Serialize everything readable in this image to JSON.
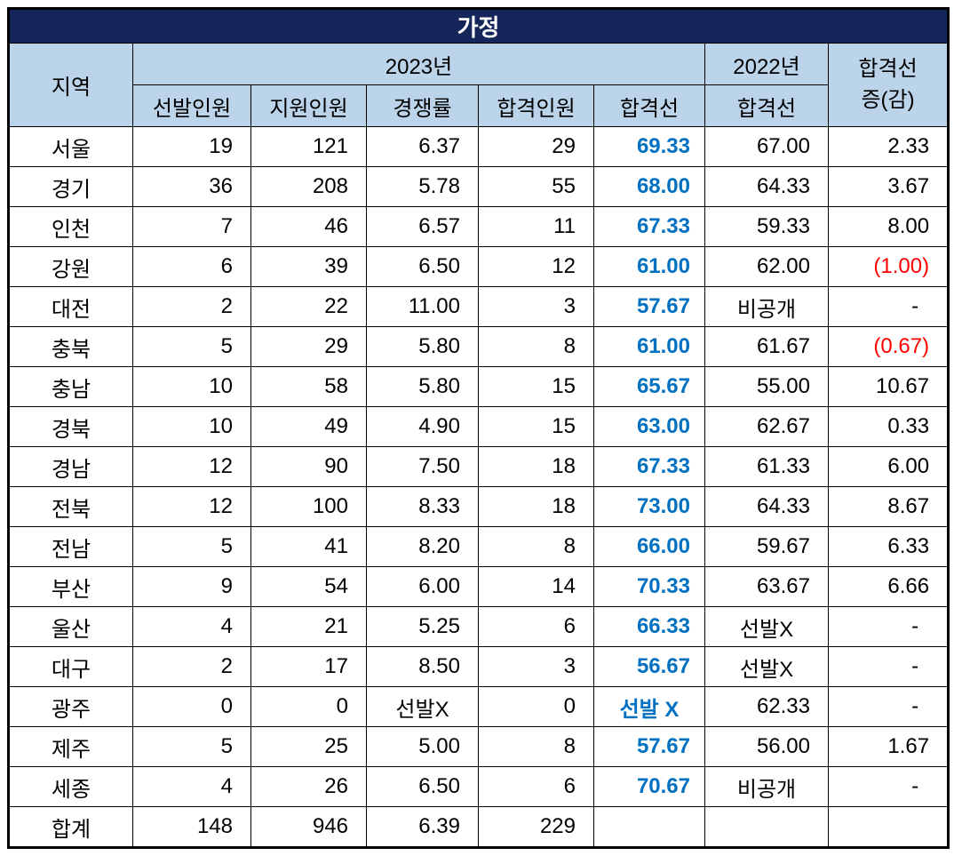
{
  "title": "가정",
  "header": {
    "region": "지역",
    "year2023": "2023년",
    "year2022": "2022년",
    "sub2023": [
      "선발인원",
      "지원인원",
      "경쟁률",
      "합격인원",
      "합격선"
    ],
    "cutoff2022": "합격선",
    "diff_line1": "합격선",
    "diff_line2": "증(감)"
  },
  "colors": {
    "title_bg": "#14265A",
    "title_text": "#FFFFFF",
    "header_bg": "#BCD4EA",
    "cutoff_blue": "#0070C0",
    "negative_red": "#FF0000",
    "border": "#000000"
  },
  "chart_data": {
    "type": "table",
    "title": "가정",
    "columns": [
      "지역",
      "2023년 선발인원",
      "2023년 지원인원",
      "2023년 경쟁률",
      "2023년 합격인원",
      "2023년 합격선",
      "2022년 합격선",
      "합격선 증(감)"
    ],
    "rows": [
      [
        "서울",
        "19",
        "121",
        "6.37",
        "29",
        "69.33",
        "67.00",
        "2.33"
      ],
      [
        "경기",
        "36",
        "208",
        "5.78",
        "55",
        "68.00",
        "64.33",
        "3.67"
      ],
      [
        "인천",
        "7",
        "46",
        "6.57",
        "11",
        "67.33",
        "59.33",
        "8.00"
      ],
      [
        "강원",
        "6",
        "39",
        "6.50",
        "12",
        "61.00",
        "62.00",
        "(1.00)"
      ],
      [
        "대전",
        "2",
        "22",
        "11.00",
        "3",
        "57.67",
        "비공개",
        "-"
      ],
      [
        "충북",
        "5",
        "29",
        "5.80",
        "8",
        "61.00",
        "61.67",
        "(0.67)"
      ],
      [
        "충남",
        "10",
        "58",
        "5.80",
        "15",
        "65.67",
        "55.00",
        "10.67"
      ],
      [
        "경북",
        "10",
        "49",
        "4.90",
        "15",
        "63.00",
        "62.67",
        "0.33"
      ],
      [
        "경남",
        "12",
        "90",
        "7.50",
        "18",
        "67.33",
        "61.33",
        "6.00"
      ],
      [
        "전북",
        "12",
        "100",
        "8.33",
        "18",
        "73.00",
        "64.33",
        "8.67"
      ],
      [
        "전남",
        "5",
        "41",
        "8.20",
        "8",
        "66.00",
        "59.67",
        "6.33"
      ],
      [
        "부산",
        "9",
        "54",
        "6.00",
        "14",
        "70.33",
        "63.67",
        "6.66"
      ],
      [
        "울산",
        "4",
        "21",
        "5.25",
        "6",
        "66.33",
        "선발X",
        "-"
      ],
      [
        "대구",
        "2",
        "17",
        "8.50",
        "3",
        "56.67",
        "선발X",
        "-"
      ],
      [
        "광주",
        "0",
        "0",
        "선발X",
        "0",
        "선발 X",
        "62.33",
        "-"
      ],
      [
        "제주",
        "5",
        "25",
        "5.00",
        "8",
        "57.67",
        "56.00",
        "1.67"
      ],
      [
        "세종",
        "4",
        "26",
        "6.50",
        "6",
        "70.67",
        "비공개",
        "-"
      ],
      [
        "합계",
        "148",
        "946",
        "6.39",
        "229",
        "",
        "",
        ""
      ]
    ]
  }
}
